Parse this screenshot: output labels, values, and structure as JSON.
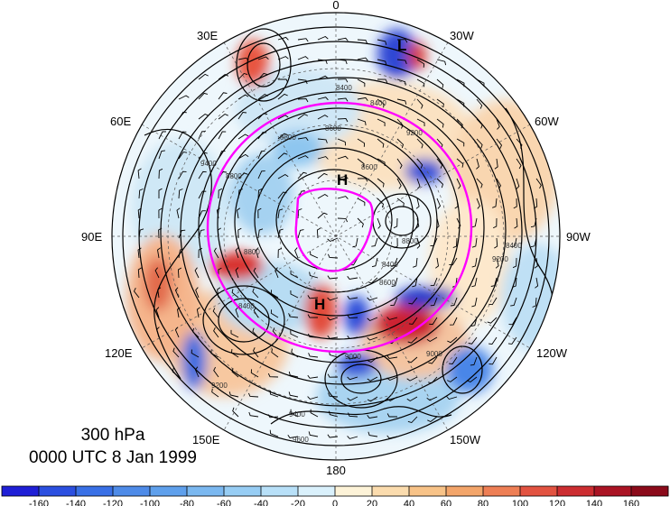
{
  "map": {
    "projection": "north polar stereographic",
    "longitude_labels": [
      "0",
      "30W",
      "60W",
      "90W",
      "120W",
      "150W",
      "180",
      "150E",
      "120E",
      "90E",
      "60E",
      "30E"
    ],
    "pressure_systems": [
      "H",
      "H",
      "L"
    ],
    "contour_labels": [
      "8400",
      "8400",
      "8400",
      "8400",
      "8400",
      "8600",
      "8600",
      "8600",
      "8800",
      "8800",
      "8800",
      "8800",
      "9000",
      "9000",
      "9200",
      "9200",
      "9200",
      "9400",
      "9400",
      "9600"
    ],
    "highlight_color": "#ff00ff"
  },
  "caption": {
    "level": "300 hPa",
    "time": "0000 UTC 8 Jan 1999"
  },
  "colorbar": {
    "ticks": [
      "-160",
      "-140",
      "-120",
      "-100",
      "-80",
      "-60",
      "-40",
      "-20",
      "0",
      "20",
      "40",
      "60",
      "80",
      "100",
      "120",
      "140",
      "160"
    ],
    "colors": [
      "#1f1fd6",
      "#2b4fe0",
      "#3970e6",
      "#4e8be8",
      "#5fa0ec",
      "#7bb8f0",
      "#97cdf4",
      "#b8e0f8",
      "#daf1fc",
      "#fdf3d8",
      "#fbdcae",
      "#f8c388",
      "#f3a56a",
      "#ee7f55",
      "#e25341",
      "#cc2d31",
      "#aa1424",
      "#8b0a1a"
    ]
  }
}
